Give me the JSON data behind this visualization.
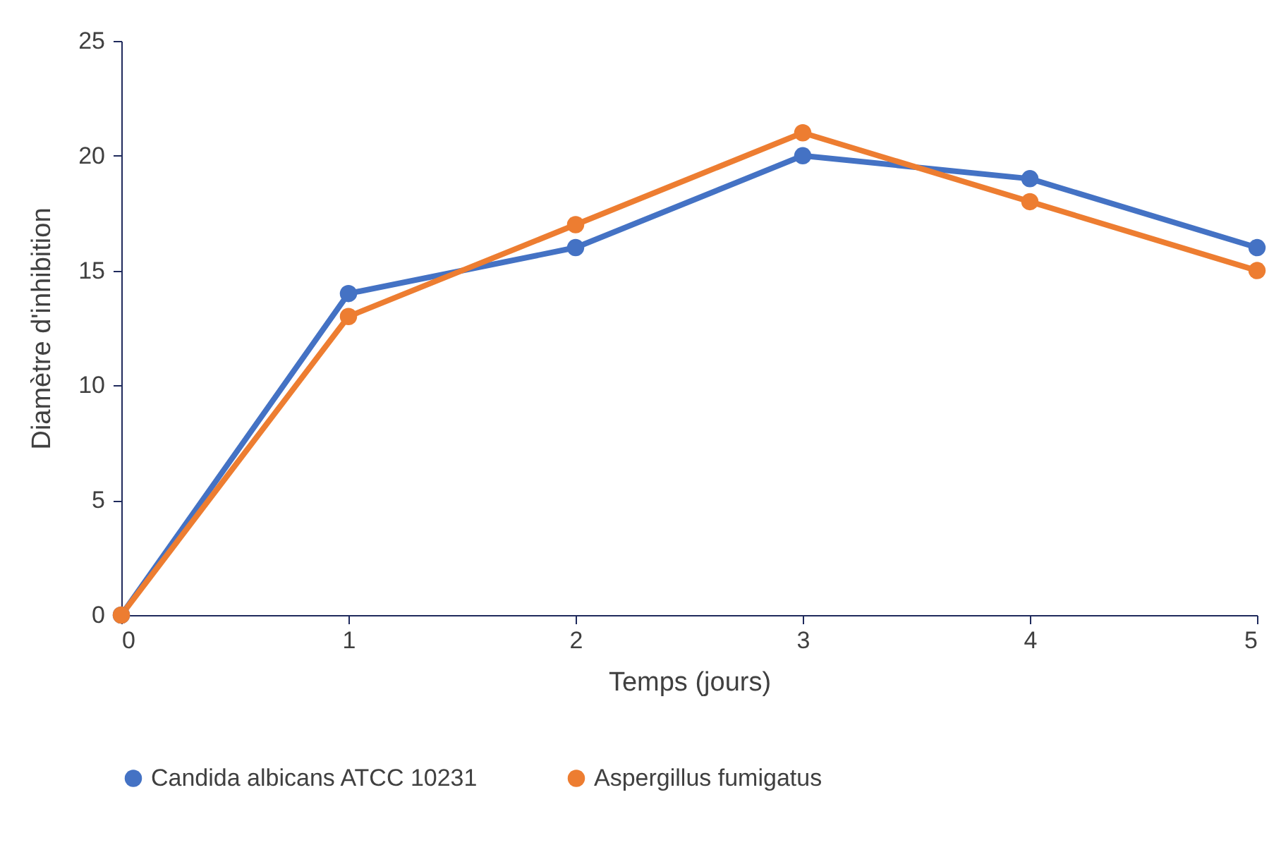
{
  "chart_data": {
    "type": "line",
    "xlabel": "Temps (jours)",
    "ylabel": "Diamètre d'inhibition",
    "x": [
      0,
      1,
      2,
      3,
      4,
      5
    ],
    "series": [
      {
        "name": "Candida albicans ATCC 10231",
        "color": "#4472c4",
        "values": [
          0,
          14,
          16,
          20,
          19,
          16
        ]
      },
      {
        "name": "Aspergillus fumigatus",
        "color": "#ed7d31",
        "values": [
          0,
          13,
          17,
          21,
          18,
          15
        ]
      }
    ],
    "xlim": [
      0,
      5
    ],
    "xticks": [
      0,
      1,
      2,
      3,
      4,
      5
    ],
    "ylim": [
      0,
      25
    ],
    "yticks": [
      0,
      5,
      10,
      15,
      20,
      25
    ],
    "grid": false,
    "legend": "bottom",
    "marker": "circle",
    "line_style": "solid"
  }
}
